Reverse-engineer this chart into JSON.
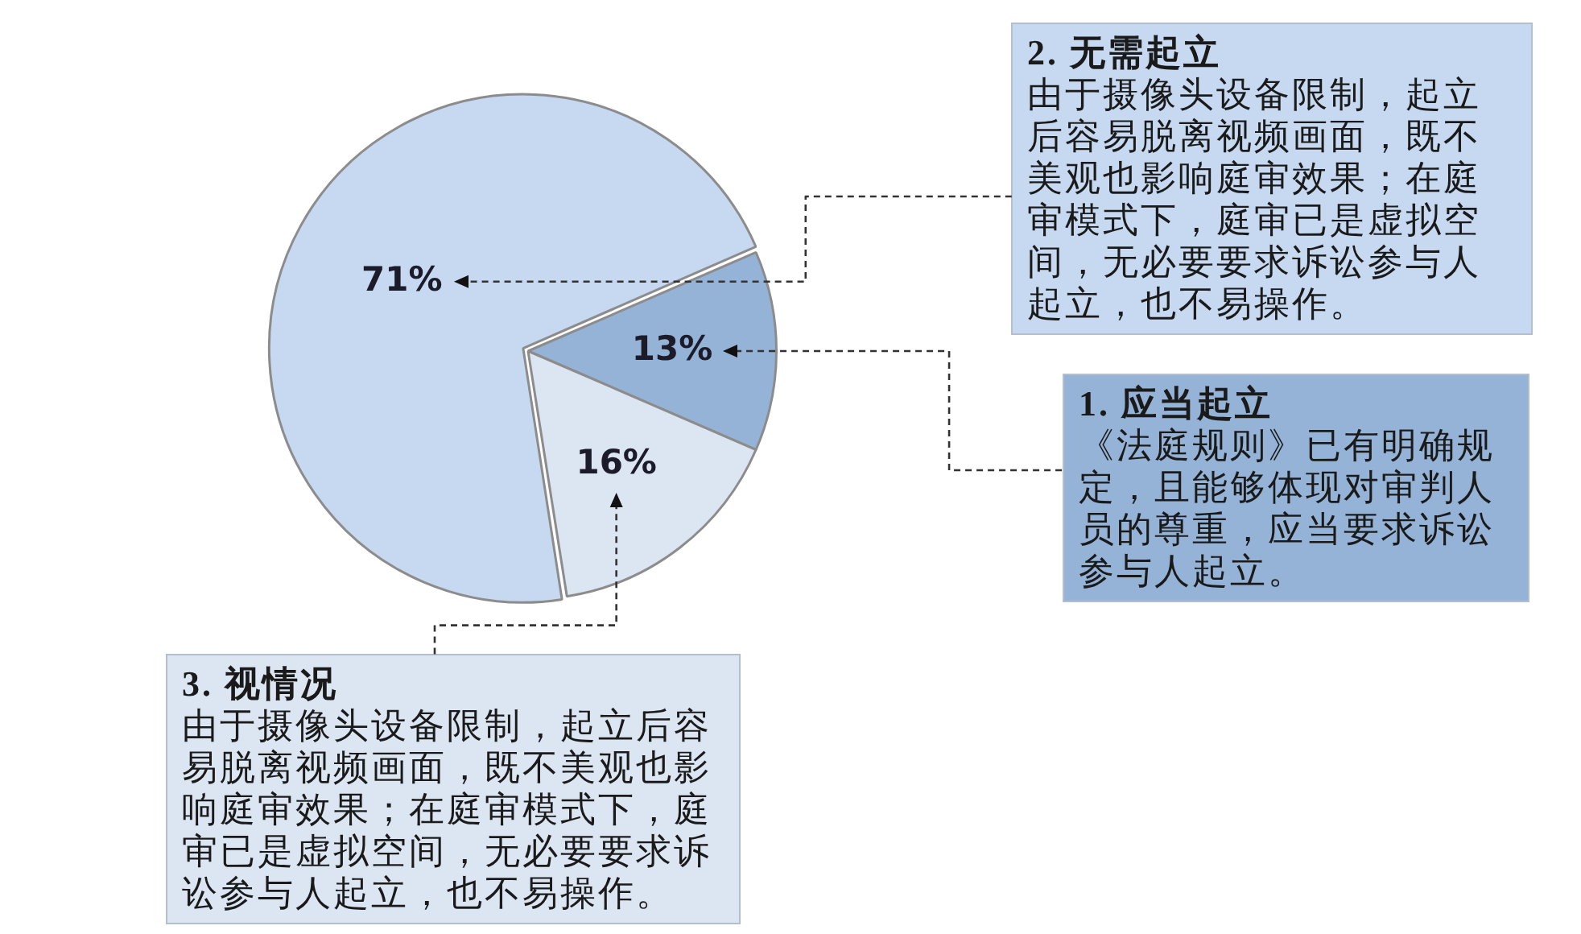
{
  "chart_data": {
    "type": "pie",
    "categories": [
      null,
      null,
      null
    ],
    "values": [
      71,
      13,
      16
    ],
    "colors": [
      "#c6d9f1",
      "#95b3d7",
      "#dce6f2"
    ],
    "value_labels": [
      "71%",
      "13%",
      "16%"
    ],
    "annotations": [
      "2. 无需起立",
      "由于摄像头设备限制，起立后容易脱离视频画面，既不美观也影响庭审效果；在庭审模式下，庭审已是虚拟空间，无必要要求诉讼参与人起立，也不易操作。",
      "1. 应当起立",
      "《法庭规则》已有明确规定，且能够体现对审判人员的尊重，应当要求诉讼参与人起立。",
      "3. 视情况",
      "由于摄像头设备限制，起立后容易脱离视频画面，既不美观也影响庭审效果；在庭审模式下，庭审已是虚拟空间，无必要要求诉讼参与人起立，也不易操作。"
    ]
  }
}
